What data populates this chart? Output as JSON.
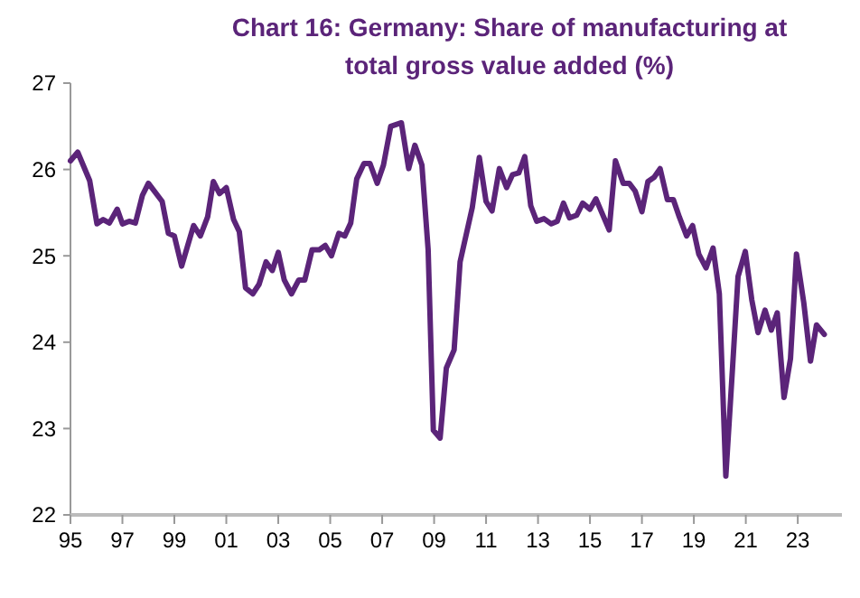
{
  "chart_data": {
    "type": "line",
    "title": "Chart 16: Germany: Share of manufacturing at total gross value added (%)",
    "x": [
      1995.0,
      1995.28,
      1995.74,
      1996.02,
      1996.26,
      1996.5,
      1996.8,
      1997.0,
      1997.26,
      1997.5,
      1997.77,
      1998.0,
      1998.53,
      1998.77,
      1999.0,
      1999.28,
      1999.74,
      2000.0,
      2000.28,
      2000.5,
      2000.74,
      2001.0,
      2001.28,
      2001.5,
      2001.74,
      2002.02,
      2002.26,
      2002.53,
      2002.77,
      2003.0,
      2003.23,
      2003.51,
      2003.79,
      2004.02,
      2004.3,
      2004.58,
      2004.81,
      2005.05,
      2005.33,
      2005.56,
      2005.79,
      2006.02,
      2006.3,
      2006.53,
      2006.81,
      2007.05,
      2007.33,
      2007.74,
      2008.02,
      2008.26,
      2008.53,
      2008.77,
      2008.97,
      2009.23,
      2009.47,
      2009.77,
      2010.0,
      2010.47,
      2010.74,
      2011.0,
      2011.23,
      2011.51,
      2011.79,
      2012.02,
      2012.26,
      2012.49,
      2012.72,
      2012.95,
      2013.23,
      2013.51,
      2013.74,
      2013.98,
      2014.21,
      2014.49,
      2014.72,
      2015.0,
      2015.23,
      2015.47,
      2015.74,
      2015.98,
      2016.28,
      2016.51,
      2016.74,
      2017.0,
      2017.23,
      2017.47,
      2017.7,
      2017.98,
      2018.21,
      2018.44,
      2018.72,
      2018.95,
      2019.19,
      2019.47,
      2019.74,
      2019.98,
      2020.23,
      2020.49,
      2020.7,
      2020.98,
      2021.23,
      2021.47,
      2021.74,
      2021.98,
      2022.21,
      2022.47,
      2022.72,
      2022.95,
      2023.23,
      2023.49,
      2023.72,
      2024.02
    ],
    "series": [
      {
        "color": "#5b2479",
        "values": [
          26.1,
          26.2,
          25.87,
          25.37,
          25.42,
          25.38,
          25.54,
          25.37,
          25.4,
          25.38,
          25.7,
          25.84,
          25.63,
          25.26,
          25.23,
          24.88,
          25.35,
          25.23,
          25.45,
          25.86,
          25.72,
          25.79,
          25.42,
          25.28,
          24.63,
          24.56,
          24.67,
          24.93,
          24.83,
          25.04,
          24.72,
          24.56,
          24.72,
          24.72,
          25.07,
          25.07,
          25.12,
          25.0,
          25.26,
          25.23,
          25.38,
          25.89,
          26.07,
          26.07,
          25.84,
          26.05,
          26.5,
          26.54,
          26.01,
          26.28,
          26.05,
          25.07,
          22.98,
          22.89,
          23.7,
          23.91,
          24.93,
          25.56,
          26.14,
          25.63,
          25.52,
          26.01,
          25.79,
          25.94,
          25.96,
          26.15,
          25.58,
          25.4,
          25.43,
          25.37,
          25.4,
          25.61,
          25.44,
          25.47,
          25.61,
          25.54,
          25.66,
          25.49,
          25.3,
          26.1,
          25.84,
          25.84,
          25.75,
          25.51,
          25.86,
          25.91,
          26.01,
          25.65,
          25.65,
          25.45,
          25.23,
          25.35,
          25.02,
          24.86,
          25.09,
          24.56,
          22.45,
          23.71,
          24.76,
          25.05,
          24.49,
          24.11,
          24.37,
          24.14,
          24.34,
          23.36,
          23.81,
          25.02,
          24.46,
          23.78,
          24.2,
          24.09
        ]
      }
    ],
    "xlim": [
      1995,
      2024.7
    ],
    "xticks": [
      {
        "value": 1995,
        "label": "95"
      },
      {
        "value": 1997,
        "label": "97"
      },
      {
        "value": 1999,
        "label": "99"
      },
      {
        "value": 2001,
        "label": "01"
      },
      {
        "value": 2003,
        "label": "03"
      },
      {
        "value": 2005,
        "label": "05"
      },
      {
        "value": 2007,
        "label": "07"
      },
      {
        "value": 2009,
        "label": "09"
      },
      {
        "value": 2011,
        "label": "11"
      },
      {
        "value": 2013,
        "label": "13"
      },
      {
        "value": 2015,
        "label": "15"
      },
      {
        "value": 2017,
        "label": "17"
      },
      {
        "value": 2019,
        "label": "19"
      },
      {
        "value": 2021,
        "label": "21"
      },
      {
        "value": 2023,
        "label": "23"
      }
    ],
    "ylim": [
      22,
      27
    ],
    "yticks": [
      22,
      23,
      24,
      25,
      26,
      27
    ],
    "grid": false,
    "line_style": "solid",
    "marker": "none"
  }
}
